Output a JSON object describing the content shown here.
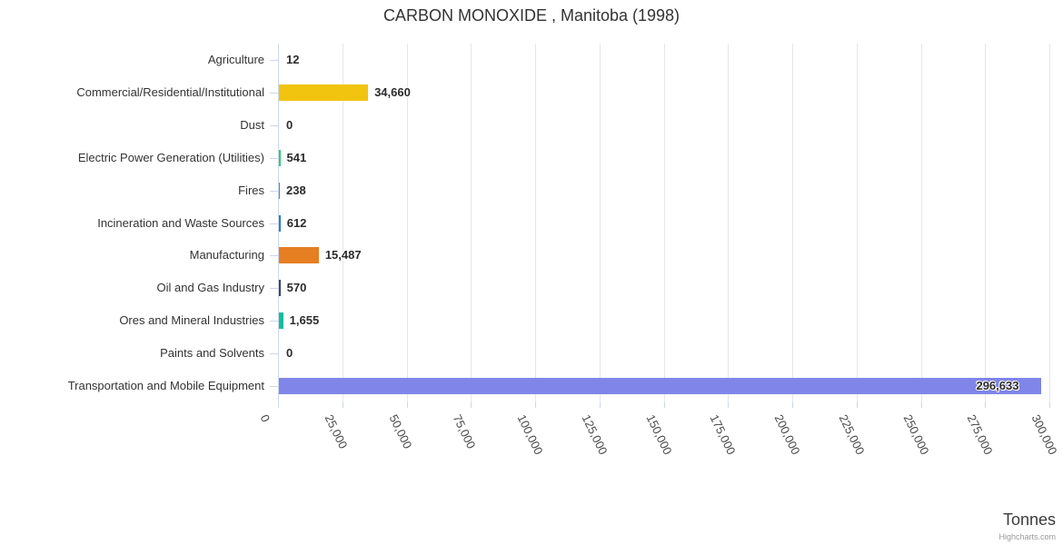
{
  "chart_data": {
    "type": "bar",
    "title": "CARBON MONOXIDE , Manitoba (1998)",
    "categories": [
      "Agriculture",
      "Commercial/Residential/Institutional",
      "Dust",
      "Electric Power Generation (Utilities)",
      "Fires",
      "Incineration and Waste Sources",
      "Manufacturing",
      "Oil and Gas Industry",
      "Ores and Mineral Industries",
      "Paints and Solvents",
      "Transportation and Mobile Equipment"
    ],
    "values": [
      12,
      34660,
      0,
      541,
      238,
      612,
      15487,
      570,
      1655,
      0,
      296633
    ],
    "value_labels": [
      "12",
      "34,660",
      "0",
      "541",
      "238",
      "612",
      "15,487",
      "570",
      "1,655",
      "0",
      "296,633"
    ],
    "bar_colors": [
      "#95a5a6",
      "#f1c40f",
      "#95a5a6",
      "#2ecc71",
      "#3498db",
      "#2980b9",
      "#e67e22",
      "#34495e",
      "#1abc9c",
      "#95a5a6",
      "#8085e9"
    ],
    "xlabel": "Tonnes",
    "ylabel": "",
    "xlim": [
      0,
      300000
    ],
    "x_tick_step": 25000,
    "x_tick_labels": [
      "0",
      "25,000",
      "50,000",
      "75,000",
      "100,000",
      "125,000",
      "150,000",
      "175,000",
      "200,000",
      "225,000",
      "250,000",
      "275,000",
      "300,000"
    ],
    "grid": true,
    "legend": false,
    "credits": "Highcharts.com",
    "colors_meta": {
      "title_color": "#333333",
      "label_color": "#333333",
      "grid_color": "#e6e6e6",
      "axis_color": "#ccd6eb"
    }
  }
}
